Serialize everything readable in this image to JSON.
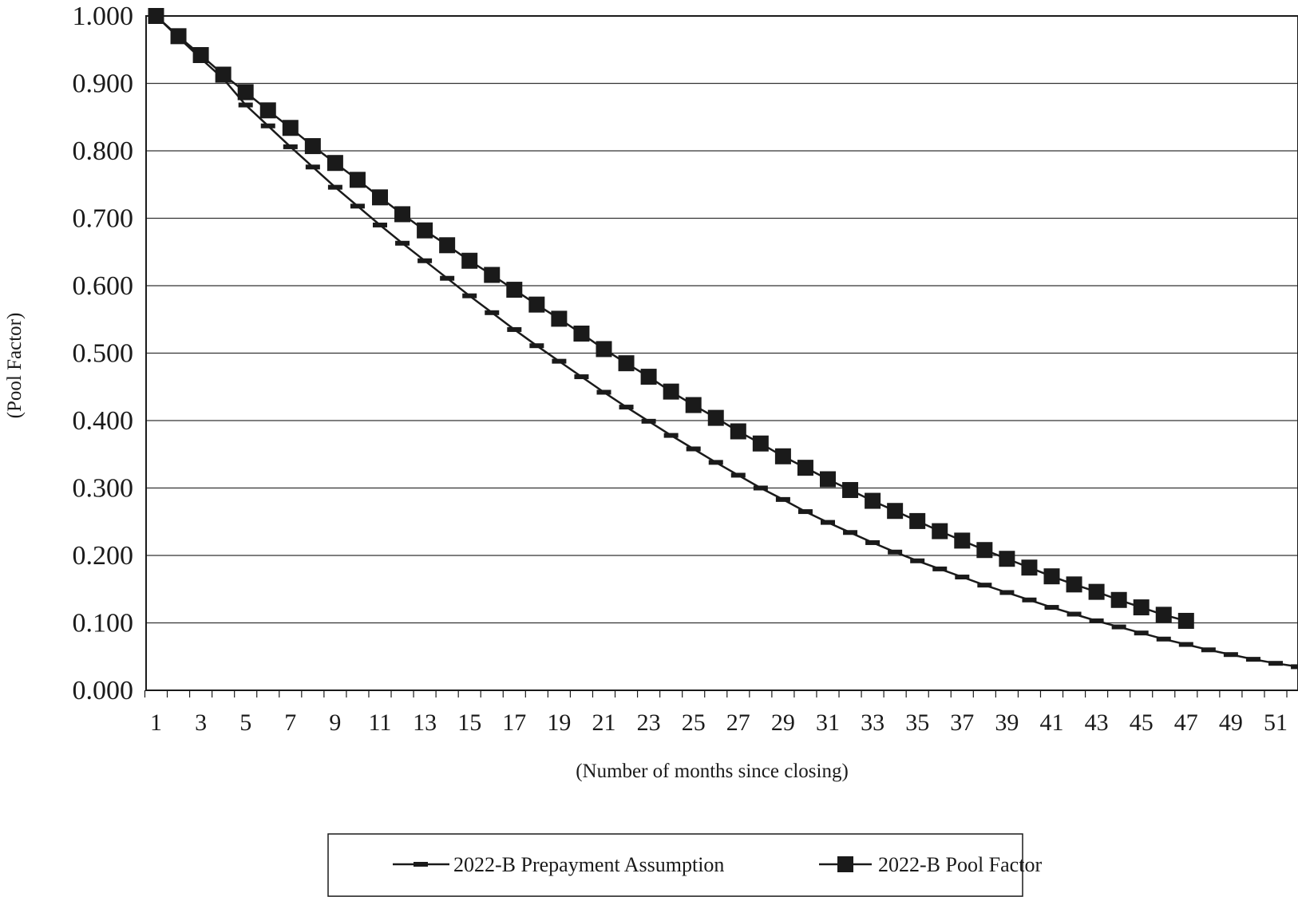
{
  "chart_data": {
    "type": "line",
    "title": "",
    "xlabel": "(Number of months since closing)",
    "ylabel": "(Pool Factor)",
    "xlim": [
      1,
      52
    ],
    "ylim": [
      0,
      1
    ],
    "x_tick_labels": [
      "1",
      "3",
      "5",
      "7",
      "9",
      "11",
      "13",
      "15",
      "17",
      "19",
      "21",
      "23",
      "25",
      "27",
      "29",
      "31",
      "33",
      "35",
      "37",
      "39",
      "41",
      "43",
      "45",
      "47",
      "49",
      "51"
    ],
    "y_tick_labels": [
      "0.000",
      "0.100",
      "0.200",
      "0.300",
      "0.400",
      "0.500",
      "0.600",
      "0.700",
      "0.800",
      "0.900",
      "1.000"
    ],
    "grid": "horizontal",
    "legend_position": "bottom",
    "series": [
      {
        "name": "2022-B Prepayment Assumption",
        "marker": "dash",
        "color": "#1a1a1a",
        "x": [
          1,
          2,
          3,
          4,
          5,
          6,
          7,
          8,
          9,
          10,
          11,
          12,
          13,
          14,
          15,
          16,
          17,
          18,
          19,
          20,
          21,
          22,
          23,
          24,
          25,
          26,
          27,
          28,
          29,
          30,
          31,
          32,
          33,
          34,
          35,
          36,
          37,
          38,
          39,
          40,
          41,
          42,
          43,
          44,
          45,
          46,
          47,
          48,
          49,
          50,
          51,
          52
        ],
        "values": [
          1.0,
          0.968,
          0.937,
          0.907,
          0.868,
          0.837,
          0.806,
          0.776,
          0.746,
          0.718,
          0.69,
          0.663,
          0.637,
          0.611,
          0.585,
          0.56,
          0.535,
          0.511,
          0.488,
          0.465,
          0.442,
          0.42,
          0.399,
          0.378,
          0.358,
          0.338,
          0.319,
          0.3,
          0.283,
          0.265,
          0.249,
          0.234,
          0.219,
          0.205,
          0.192,
          0.18,
          0.168,
          0.156,
          0.145,
          0.134,
          0.123,
          0.113,
          0.103,
          0.094,
          0.085,
          0.076,
          0.068,
          0.06,
          0.053,
          0.046,
          0.04,
          0.035
        ]
      },
      {
        "name": "2022-B Pool Factor",
        "marker": "square",
        "color": "#1a1a1a",
        "x": [
          1,
          2,
          3,
          4,
          5,
          6,
          7,
          8,
          9,
          10,
          11,
          12,
          13,
          14,
          15,
          16,
          17,
          18,
          19,
          20,
          21,
          22,
          23,
          24,
          25,
          26,
          27,
          28,
          29,
          30,
          31,
          32,
          33,
          34,
          35,
          36,
          37,
          38,
          39,
          40,
          41,
          42,
          43,
          44,
          45,
          46,
          47
        ],
        "values": [
          1.0,
          0.97,
          0.942,
          0.913,
          0.887,
          0.86,
          0.834,
          0.807,
          0.782,
          0.757,
          0.731,
          0.706,
          0.682,
          0.66,
          0.637,
          0.616,
          0.594,
          0.572,
          0.551,
          0.529,
          0.506,
          0.485,
          0.465,
          0.443,
          0.423,
          0.404,
          0.384,
          0.366,
          0.347,
          0.33,
          0.313,
          0.297,
          0.281,
          0.266,
          0.251,
          0.236,
          0.222,
          0.208,
          0.195,
          0.182,
          0.169,
          0.157,
          0.146,
          0.134,
          0.123,
          0.112,
          0.103
        ]
      }
    ]
  }
}
